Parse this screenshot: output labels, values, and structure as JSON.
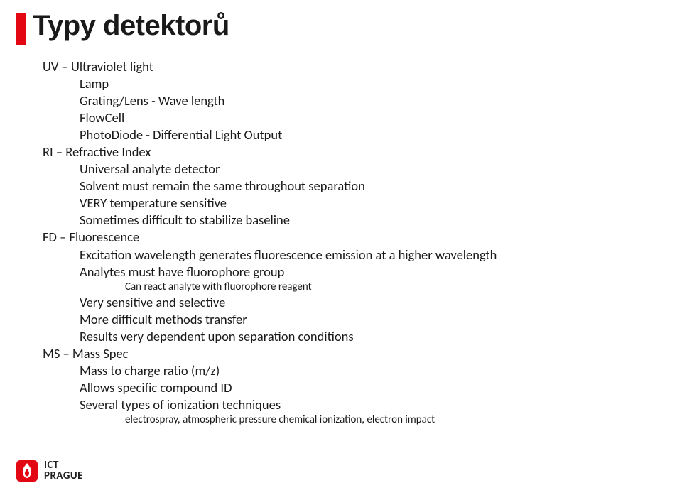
{
  "title": "Typy detektorů",
  "lines": [
    {
      "level": 0,
      "text": "UV – Ultraviolet light"
    },
    {
      "level": 1,
      "text": "Lamp"
    },
    {
      "level": 1,
      "text": "Grating/Lens - Wave length"
    },
    {
      "level": 1,
      "text": "FlowCell"
    },
    {
      "level": 1,
      "text": "PhotoDiode - Differential Light Output"
    },
    {
      "level": 0,
      "text": "RI – Refractive Index"
    },
    {
      "level": 1,
      "text": "Universal analyte detector"
    },
    {
      "level": 1,
      "text": "Solvent must remain the same throughout separation"
    },
    {
      "level": 1,
      "text": "VERY temperature sensitive"
    },
    {
      "level": 1,
      "text": "Sometimes difficult to stabilize baseline"
    },
    {
      "level": 0,
      "text": "FD – Fluorescence"
    },
    {
      "level": 1,
      "text": "Excitation wavelength generates fluorescence emission at a higher wavelength"
    },
    {
      "level": 1,
      "text": "Analytes must have fluorophore group"
    },
    {
      "level": 2,
      "text": "Can react analyte with fluorophore reagent"
    },
    {
      "level": 1,
      "text": "Very sensitive and selective"
    },
    {
      "level": 1,
      "text": "More difficult methods transfer"
    },
    {
      "level": 1,
      "text": "Results very dependent upon separation conditions"
    },
    {
      "level": 0,
      "text": "MS – Mass Spec"
    },
    {
      "level": 1,
      "text": "Mass to charge ratio (m/z)"
    },
    {
      "level": 1,
      "text": "Allows specific compound ID"
    },
    {
      "level": 1,
      "text": "Several types of ionization techniques"
    },
    {
      "level": 2,
      "text": "electrospray, atmospheric pressure chemical ionization, electron impact"
    }
  ],
  "logo": {
    "line1": "ICT",
    "line2": "PRAGUE"
  },
  "colors": {
    "accent": "#e30613",
    "text": "#1a1a1a",
    "background": "#ffffff"
  }
}
